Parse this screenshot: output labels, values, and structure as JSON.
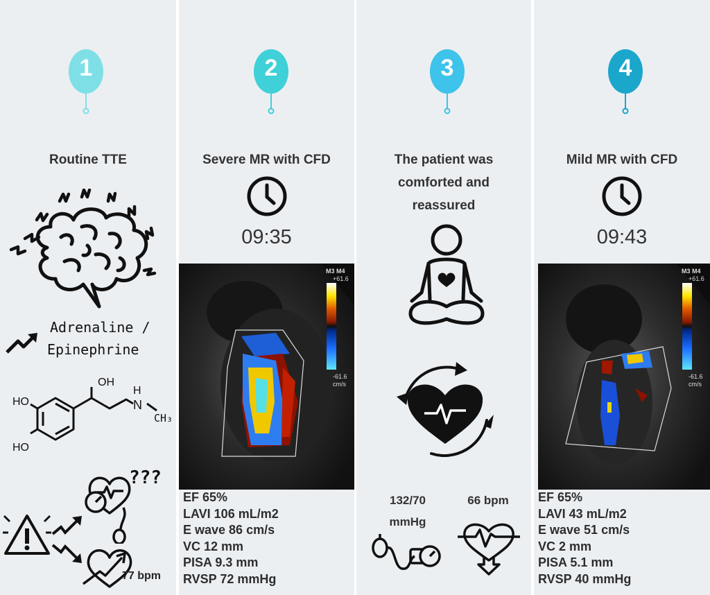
{
  "steps": [
    {
      "number": "1",
      "title": "Routine TTE",
      "color": "#7ee0e6"
    },
    {
      "number": "2",
      "title": "Severe MR with CFD",
      "time": "09:35",
      "color": "#3fd0d8",
      "metrics": [
        "EF 65%",
        "LAVI 106 mL/m2",
        "E wave 86 cm/s",
        "VC 12 mm",
        "PISA 9.3 mm",
        "RVSP 72 mmHg"
      ]
    },
    {
      "number": "3",
      "title_lines": [
        "The patient was",
        "comforted and",
        "reassured"
      ],
      "color": "#3ec3ea",
      "bp": [
        "132/70",
        "mmHg"
      ],
      "hr": "66 bpm"
    },
    {
      "number": "4",
      "title": "Mild MR with CFD",
      "time": "09:43",
      "color": "#1ba6cc",
      "metrics": [
        "EF 65%",
        "LAVI 43 mL/m2",
        "E wave 51 cm/s",
        "VC 2 mm",
        "PISA 5.1 mm",
        "RVSP 40 mmHg"
      ]
    }
  ],
  "panel1": {
    "hormone_line1": "Adrenaline /",
    "hormone_line2": "Epinephrine",
    "mol_oh_top": "OH",
    "mol_ho1": "HO",
    "mol_ho2": "HO",
    "mol_h": "H",
    "mol_n": "N",
    "mol_ch3": "CH₃",
    "question": "???",
    "hr": "77 bpm"
  },
  "echo_scale": {
    "mode": "M3 M4",
    "top": "+61.6",
    "bottom": "-61.6",
    "unit": "cm/s"
  },
  "icons": [
    "brain-icon",
    "trend-up-icon",
    "epinephrine-molecule",
    "warning-icon",
    "heart-gauge-icon",
    "clock-icon",
    "meditation-icon",
    "heart-cycle-icon",
    "sphygmomanometer-icon",
    "heart-down-icon"
  ]
}
